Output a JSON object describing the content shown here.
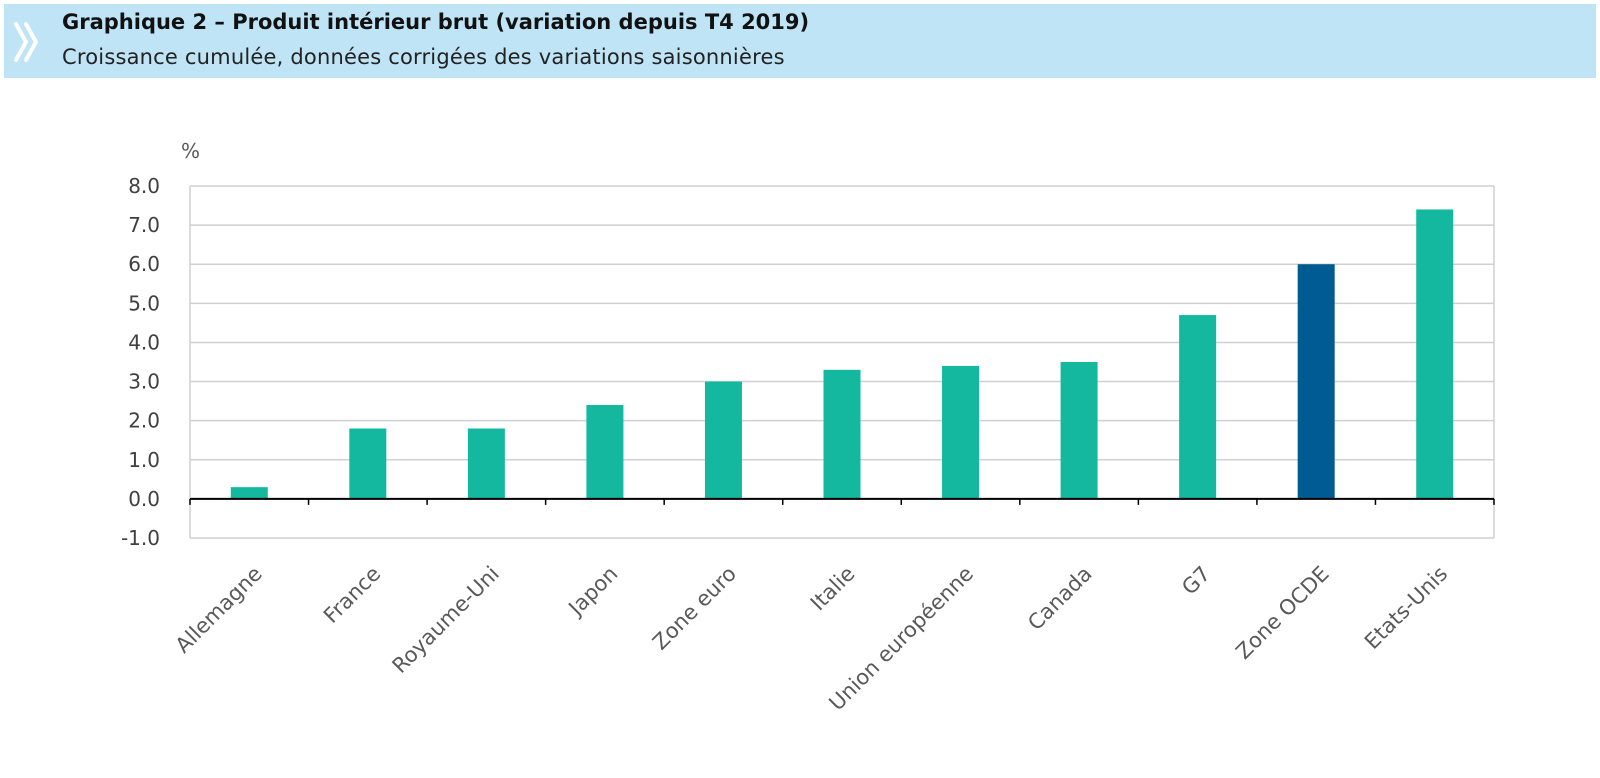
{
  "header": {
    "title": "Graphique 2 – Produit intérieur brut (variation depuis T4 2019)",
    "subtitle": "Croissance cumulée, données corrigées des variations saisonnières",
    "icon": "double-chevron-icon",
    "background_color": "#bfe4f6",
    "icon_color": "#ffffff"
  },
  "chart_data": {
    "type": "bar",
    "title": "Graphique 2 – Produit intérieur brut (variation depuis T4 2019)",
    "subtitle": "Croissance cumulée, données corrigées des variations saisonnières",
    "ylabel": "%",
    "xlabel": "",
    "ylim": [
      -1.0,
      8.0
    ],
    "yticks": [
      -1.0,
      0.0,
      1.0,
      2.0,
      3.0,
      4.0,
      5.0,
      6.0,
      7.0,
      8.0
    ],
    "ytick_labels": [
      "-1.0",
      "0.0",
      "1.0",
      "2.0",
      "3.0",
      "4.0",
      "5.0",
      "6.0",
      "7.0",
      "8.0"
    ],
    "grid": true,
    "legend": "none",
    "categories": [
      "Allemagne",
      "France",
      "Royaume-Uni",
      "Japon",
      "Zone euro",
      "Italie",
      "Union européenne",
      "Canada",
      "G7",
      "Zone OCDE",
      "Etats-Unis"
    ],
    "values": [
      0.3,
      1.8,
      1.8,
      2.4,
      3.0,
      3.3,
      3.4,
      3.5,
      4.7,
      6.0,
      7.4
    ],
    "highlight_category": "Zone OCDE",
    "colors": {
      "bar": "#13b89e",
      "highlight": "#005b92",
      "grid": "#d0d0d0",
      "axis": "#000000"
    }
  }
}
